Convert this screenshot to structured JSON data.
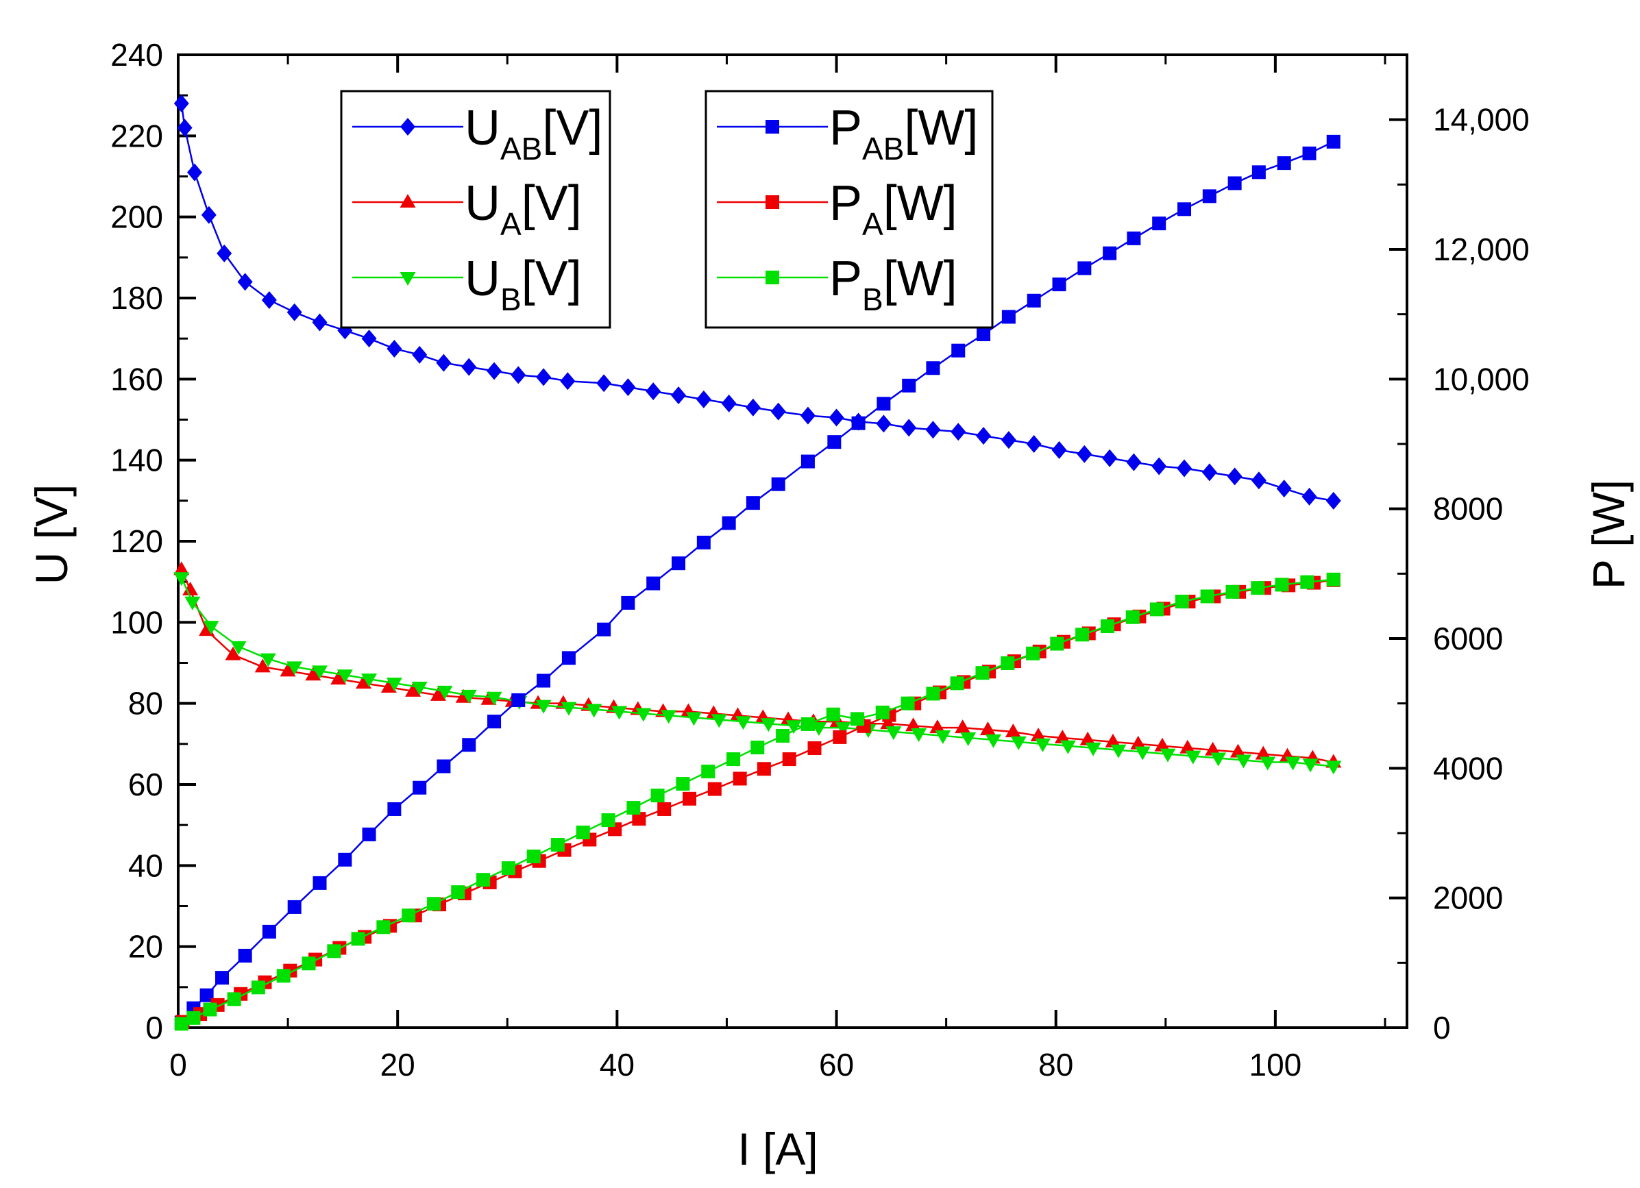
{
  "chart_data": {
    "type": "line",
    "xlabel": "I [A]",
    "ylabel_left": "U [V]",
    "ylabel_right": "P [W]",
    "xlim": [
      0,
      112
    ],
    "ylim_left": [
      0,
      240
    ],
    "ylim_right": [
      0,
      15000
    ],
    "x_ticks": [
      0,
      20,
      40,
      60,
      80,
      100
    ],
    "x_tick_labels": [
      "0",
      "20",
      "40",
      "60",
      "80",
      "100"
    ],
    "y_left_ticks": [
      0,
      20,
      40,
      60,
      80,
      100,
      120,
      140,
      160,
      180,
      200,
      220,
      240
    ],
    "y_left_tick_labels": [
      "0",
      "20",
      "40",
      "60",
      "80",
      "100",
      "120",
      "140",
      "160",
      "180",
      "200",
      "220",
      "240"
    ],
    "y_right_ticks": [
      0,
      2000,
      4000,
      6000,
      8000,
      10000,
      12000,
      14000
    ],
    "y_right_tick_labels": [
      "0",
      "2000",
      "4000",
      "6000",
      "8000",
      "10,000",
      "12,000",
      "14,000"
    ],
    "colors": {
      "blue": "#0000ee",
      "red": "#ee0000",
      "green": "#00e000"
    },
    "legend_left": [
      {
        "main": "U",
        "sub": "AB",
        "tail": "[V]",
        "color": "#0000ee",
        "marker": "diamond"
      },
      {
        "main": "U",
        "sub": "A",
        "tail": "[V]",
        "color": "#ee0000",
        "marker": "triangle-up"
      },
      {
        "main": "U",
        "sub": "B",
        "tail": "[V]",
        "color": "#00e000",
        "marker": "triangle-down"
      }
    ],
    "legend_right": [
      {
        "main": "P",
        "sub": "AB",
        "tail": "[W]",
        "color": "#0000ee",
        "marker": "square"
      },
      {
        "main": "P",
        "sub": "A",
        "tail": "[W]",
        "color": "#ee0000",
        "marker": "square"
      },
      {
        "main": "P",
        "sub": "B",
        "tail": "[W]",
        "color": "#00e000",
        "marker": "square"
      }
    ],
    "series": [
      {
        "name": "U_AB[V]",
        "axis": "left",
        "color": "#0000ee",
        "marker": "diamond",
        "x": [
          0.3,
          0.6,
          1.5,
          2.8,
          4.2,
          6.1,
          8.3,
          10.6,
          12.9,
          15.2,
          17.4,
          19.7,
          22.0,
          24.2,
          26.5,
          28.8,
          31.0,
          33.3,
          35.5,
          38.8,
          41.0,
          43.3,
          45.6,
          47.9,
          50.2,
          52.4,
          54.7,
          57.4,
          60.0,
          62.0,
          64.3,
          66.6,
          68.8,
          71.1,
          73.4,
          75.7,
          78.0,
          80.3,
          82.6,
          84.9,
          87.1,
          89.4,
          91.7,
          94.0,
          96.3,
          98.5,
          100.8,
          103.1,
          105.3
        ],
        "y": [
          228,
          222,
          211,
          200.5,
          191,
          184,
          179.5,
          176.5,
          174,
          172,
          170,
          167.5,
          166,
          164,
          163,
          162,
          161,
          160.5,
          159.5,
          159,
          158,
          157,
          156,
          155,
          154,
          153,
          152,
          151,
          150.5,
          149.5,
          149,
          148,
          147.5,
          147,
          146,
          145,
          144,
          142.5,
          141.5,
          140.5,
          139.5,
          138.5,
          138,
          137,
          136,
          135,
          133,
          131,
          130
        ]
      },
      {
        "name": "U_A[V]",
        "axis": "left",
        "color": "#ee0000",
        "marker": "triangle-up",
        "x": [
          0.3,
          1.1,
          2.6,
          5.0,
          7.7,
          10.0,
          12.3,
          14.6,
          16.9,
          19.2,
          21.4,
          23.7,
          26.0,
          28.3,
          30.5,
          32.8,
          35.1,
          37.4,
          39.7,
          41.9,
          44.2,
          46.5,
          48.8,
          51.0,
          53.3,
          55.6,
          57.9,
          60.1,
          62.4,
          64.7,
          67.0,
          69.2,
          71.5,
          73.8,
          76.1,
          78.4,
          80.6,
          82.9,
          85.2,
          87.5,
          89.7,
          92.0,
          94.3,
          96.6,
          98.9,
          101.1,
          103.4,
          105.3
        ],
        "y": [
          113,
          108,
          98,
          92,
          89,
          88,
          87,
          86,
          85,
          84,
          83,
          82,
          81.5,
          81,
          80.5,
          80,
          80,
          79.5,
          79,
          78.5,
          78,
          78,
          77.5,
          77,
          76.5,
          76,
          75.5,
          75.5,
          75,
          75,
          74.5,
          74,
          74,
          73.5,
          73,
          72,
          71.5,
          71,
          70.5,
          70,
          69.5,
          69,
          68.5,
          68,
          67.5,
          67,
          66.5,
          65.5
        ]
      },
      {
        "name": "U_B[V]",
        "axis": "left",
        "color": "#00e000",
        "marker": "triangle-down",
        "x": [
          0.3,
          1.3,
          3.0,
          5.5,
          8.2,
          10.6,
          12.9,
          15.2,
          17.4,
          19.7,
          22.0,
          24.3,
          26.5,
          28.8,
          31.1,
          33.3,
          35.6,
          37.9,
          40.2,
          42.4,
          44.7,
          47.0,
          49.3,
          51.5,
          53.8,
          56.1,
          58.4,
          60.6,
          62.9,
          65.2,
          67.5,
          69.7,
          72.0,
          74.3,
          76.6,
          78.8,
          81.1,
          83.4,
          85.7,
          87.9,
          90.2,
          92.5,
          94.8,
          97.1,
          99.3,
          101.6,
          103.2,
          105.3
        ],
        "y": [
          111,
          105,
          99,
          94,
          91,
          89,
          88,
          87,
          86,
          85,
          84,
          83,
          82,
          81.5,
          80.5,
          79.5,
          79,
          78.5,
          78,
          77.5,
          77,
          76.5,
          76,
          75.5,
          75,
          74.5,
          74,
          74,
          73.5,
          73,
          72.5,
          72,
          71.5,
          71,
          70.5,
          70,
          69.5,
          69,
          68.5,
          68,
          67.5,
          67,
          66.5,
          66,
          65.5,
          65.5,
          65,
          64.5
        ]
      },
      {
        "name": "P_AB[W]",
        "axis": "right",
        "color": "#0000ee",
        "marker": "square",
        "x": [
          0.3,
          1.4,
          2.6,
          4.0,
          6.1,
          8.3,
          10.6,
          12.9,
          15.2,
          17.4,
          19.7,
          22.0,
          24.2,
          26.5,
          28.8,
          31.0,
          33.3,
          35.6,
          38.8,
          41.0,
          43.3,
          45.6,
          47.9,
          50.2,
          52.4,
          54.7,
          57.4,
          59.8,
          62.0,
          64.3,
          66.6,
          68.8,
          71.1,
          73.4,
          75.7,
          78.0,
          80.3,
          82.6,
          84.9,
          87.1,
          89.4,
          91.7,
          94.0,
          96.3,
          98.5,
          100.8,
          103.1,
          105.3
        ],
        "y": [
          80,
          300,
          500,
          770,
          1110,
          1480,
          1860,
          2230,
          2590,
          2980,
          3370,
          3700,
          4030,
          4360,
          4720,
          5050,
          5350,
          5700,
          6140,
          6550,
          6850,
          7160,
          7480,
          7780,
          8090,
          8380,
          8730,
          9030,
          9320,
          9620,
          9900,
          10170,
          10440,
          10690,
          10960,
          11210,
          11460,
          11710,
          11940,
          12170,
          12400,
          12620,
          12820,
          13020,
          13190,
          13330,
          13480,
          13660
        ]
      },
      {
        "name": "P_A[W]",
        "axis": "right",
        "color": "#ee0000",
        "marker": "square",
        "x": [
          0.4,
          2.0,
          3.6,
          5.7,
          7.9,
          10.2,
          12.5,
          14.7,
          17.0,
          19.3,
          21.6,
          23.8,
          26.1,
          28.4,
          30.7,
          32.9,
          35.2,
          37.5,
          39.8,
          42.0,
          44.3,
          46.6,
          48.9,
          51.2,
          53.4,
          55.7,
          58.0,
          60.3,
          62.5,
          64.8,
          67.1,
          69.4,
          71.6,
          73.9,
          76.2,
          78.5,
          80.7,
          83.0,
          85.3,
          87.6,
          89.8,
          92.1,
          94.4,
          96.7,
          99.0,
          101.2,
          103.5,
          105.3
        ],
        "y": [
          90,
          210,
          350,
          520,
          700,
          880,
          1050,
          1230,
          1400,
          1570,
          1730,
          1900,
          2070,
          2240,
          2410,
          2570,
          2740,
          2900,
          3060,
          3220,
          3370,
          3530,
          3680,
          3840,
          3990,
          4140,
          4310,
          4480,
          4650,
          4820,
          5000,
          5170,
          5330,
          5490,
          5650,
          5800,
          5950,
          6080,
          6220,
          6340,
          6460,
          6570,
          6650,
          6720,
          6780,
          6820,
          6860,
          6900
        ]
      },
      {
        "name": "P_B[W]",
        "axis": "right",
        "color": "#00e000",
        "marker": "square",
        "x": [
          0.3,
          1.4,
          2.9,
          5.1,
          7.3,
          9.6,
          11.9,
          14.2,
          16.4,
          18.7,
          21.0,
          23.3,
          25.5,
          27.8,
          30.1,
          32.4,
          34.6,
          36.9,
          39.2,
          41.5,
          43.7,
          46.0,
          48.3,
          50.6,
          52.8,
          55.1,
          57.4,
          59.7,
          61.9,
          64.2,
          66.5,
          68.8,
          71.0,
          73.3,
          75.6,
          77.9,
          80.1,
          82.4,
          84.7,
          87.0,
          89.2,
          91.5,
          93.8,
          96.1,
          98.4,
          100.6,
          102.9,
          105.3
        ],
        "y": [
          60,
          150,
          280,
          440,
          620,
          800,
          990,
          1180,
          1370,
          1550,
          1730,
          1910,
          2090,
          2280,
          2460,
          2640,
          2820,
          3010,
          3200,
          3390,
          3580,
          3760,
          3950,
          4140,
          4320,
          4500,
          4680,
          4830,
          4760,
          4860,
          5000,
          5150,
          5310,
          5470,
          5620,
          5770,
          5920,
          6060,
          6190,
          6330,
          6450,
          6570,
          6650,
          6720,
          6780,
          6830,
          6870,
          6910
        ]
      }
    ]
  }
}
